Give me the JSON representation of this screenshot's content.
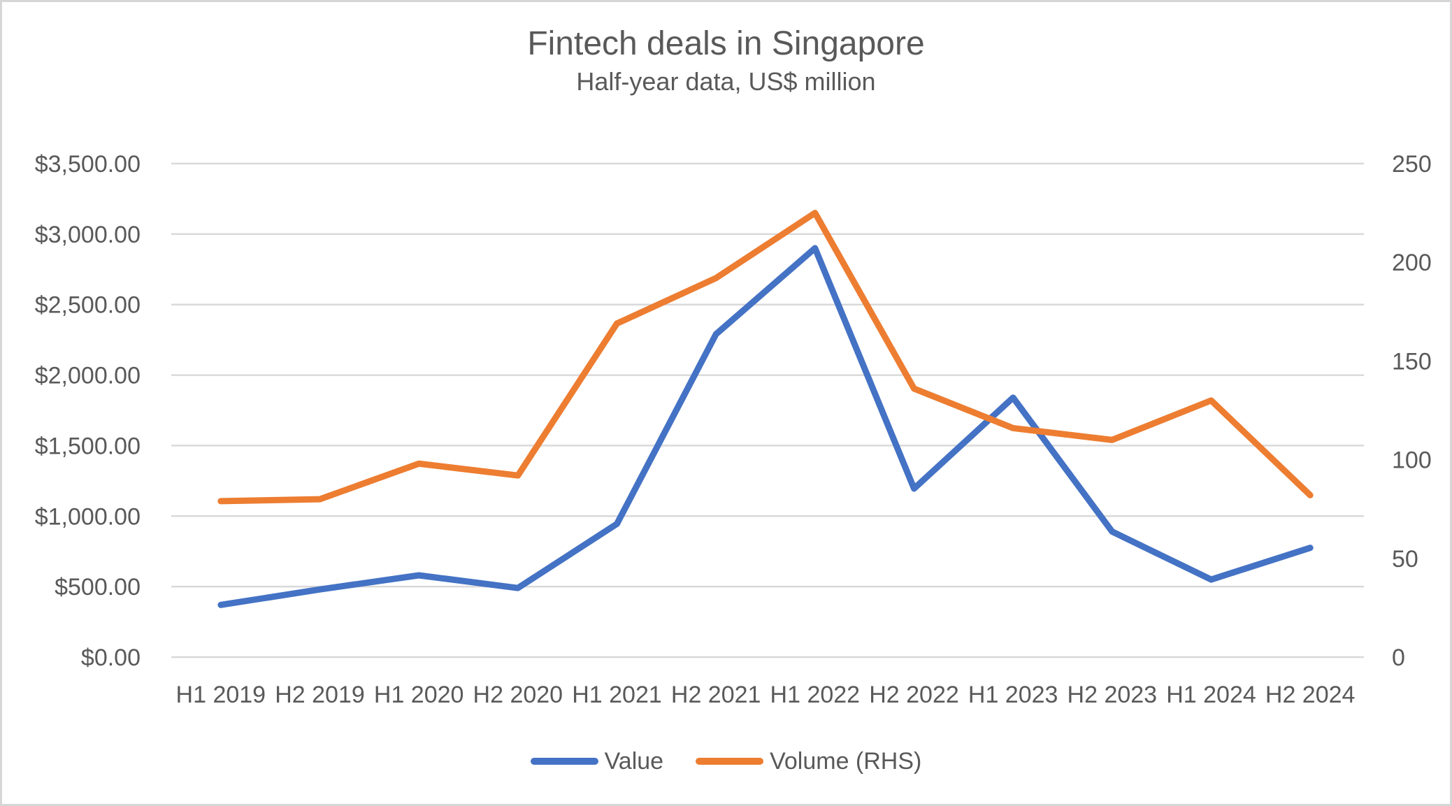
{
  "chart_data": {
    "type": "line",
    "title": "Fintech deals in Singapore",
    "subtitle": "Half-year data, US$ million",
    "categories": [
      "H1 2019",
      "H2 2019",
      "H1 2020",
      "H2 2020",
      "H1 2021",
      "H2 2021",
      "H1 2022",
      "H2 2022",
      "H1 2023",
      "H2 2023",
      "H1 2024",
      "H2 2024"
    ],
    "series": [
      {
        "name": "Value",
        "axis": "left",
        "color": "#4472C4",
        "values": [
          370,
          480,
          580,
          490,
          945,
          2290,
          2900,
          1195,
          1840,
          890,
          550,
          775
        ]
      },
      {
        "name": "Volume (RHS)",
        "axis": "right",
        "color": "#ED7D31",
        "values": [
          79,
          80,
          98,
          92,
          169,
          192,
          225,
          136,
          116,
          110,
          130,
          82
        ]
      }
    ],
    "left_axis": {
      "min": 0,
      "max": 3500,
      "step": 500,
      "tick_labels_top_to_bottom": [
        "$3,500.00",
        "$3,000.00",
        "$2,500.00",
        "$2,000.00",
        "$1,500.00",
        "$1,000.00",
        "$500.00",
        "$0.00"
      ]
    },
    "right_axis": {
      "min": 0,
      "max": 250,
      "step": 50,
      "tick_labels_top_to_bottom": [
        "250",
        "200",
        "150",
        "100",
        "50",
        "0"
      ]
    },
    "grid": true,
    "legend_position": "bottom"
  },
  "legend": {
    "items": [
      {
        "label": "Value",
        "color": "#4472C4"
      },
      {
        "label": "Volume (RHS)",
        "color": "#ED7D31"
      }
    ]
  },
  "style": {
    "gridline_color": "#D9D9D9",
    "text_color": "#595959",
    "background": "#FFFFFF",
    "series_stroke_width": 9
  }
}
